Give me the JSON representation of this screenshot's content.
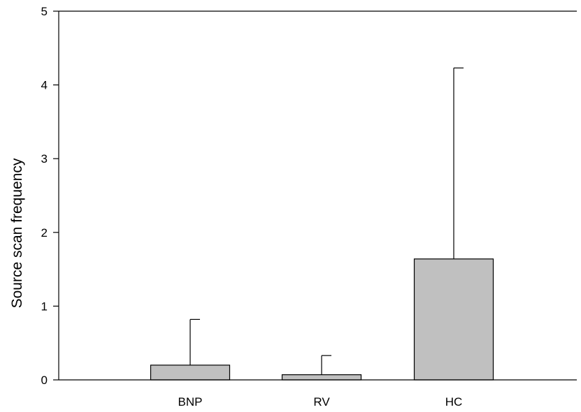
{
  "chart_data": {
    "type": "bar",
    "title": "",
    "xlabel": "",
    "ylabel": "Source scan frequency",
    "categories": [
      "BNP",
      "RV",
      "HC"
    ],
    "values": [
      0.2,
      0.07,
      1.64
    ],
    "error_upper": [
      0.82,
      0.33,
      4.23
    ],
    "ylim": [
      0,
      5
    ],
    "yticks": [
      0,
      1,
      2,
      3,
      4,
      5
    ],
    "grid": false,
    "legend": "none",
    "bar_color": "#c0c0c0",
    "bar_edge_color": "#000000"
  }
}
